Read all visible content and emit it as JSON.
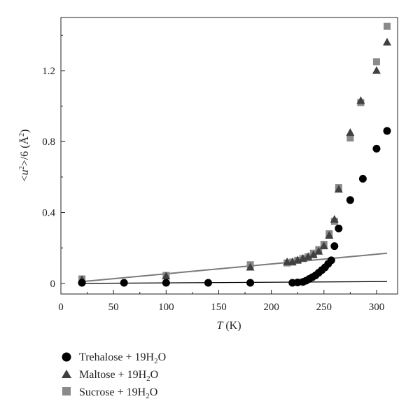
{
  "chart_data": {
    "type": "scatter",
    "title": "",
    "xlabel": {
      "italic": "T",
      "rest": " (K)"
    },
    "ylabel": {
      "pre": "<",
      "italic": "u",
      "sup": "2",
      "post": ">/6 (Å",
      "sup2": "2",
      "end": ")"
    },
    "xlim": [
      0,
      320
    ],
    "ylim": [
      -0.06,
      1.5
    ],
    "x_ticks": [
      0,
      50,
      100,
      150,
      200,
      250,
      300
    ],
    "x_tick_labels": [
      "0",
      "50",
      "100",
      "150",
      "200",
      "250",
      "300"
    ],
    "y_ticks": [
      0,
      0.4,
      0.8,
      1.2
    ],
    "y_tick_labels": [
      "0",
      "0.4",
      "0.8",
      "1.2"
    ],
    "grid": false,
    "legend_position": "below",
    "series": [
      {
        "name": "Trehalose + 19H₂O",
        "legend": {
          "pre": "Trehalose + 19H",
          "sub": "2",
          "post": "O"
        },
        "marker": "circle",
        "color": "#000000",
        "x": [
          20,
          60,
          100,
          140,
          180,
          220,
          225,
          230,
          233,
          236,
          239,
          242,
          245,
          248,
          251,
          254,
          257,
          260,
          264,
          275,
          287,
          300,
          310
        ],
        "y": [
          0.003,
          0.003,
          0.003,
          0.003,
          0.003,
          0.003,
          0.005,
          0.008,
          0.015,
          0.025,
          0.035,
          0.045,
          0.06,
          0.075,
          0.09,
          0.11,
          0.13,
          0.21,
          0.31,
          0.47,
          0.59,
          0.76,
          0.86
        ]
      },
      {
        "name": "Maltose + 19H₂O",
        "legend": {
          "pre": "Maltose + 19H",
          "sub": "2",
          "post": "O"
        },
        "marker": "triangle",
        "color": "#404040",
        "x": [
          20,
          100,
          180,
          215,
          220,
          225,
          230,
          235,
          240,
          245,
          250,
          255,
          260,
          264,
          275,
          285,
          300,
          310
        ],
        "y": [
          0.02,
          0.04,
          0.09,
          0.12,
          0.12,
          0.13,
          0.14,
          0.15,
          0.16,
          0.18,
          0.21,
          0.27,
          0.36,
          0.53,
          0.85,
          1.03,
          1.2,
          1.36
        ]
      },
      {
        "name": "Sucrose + 19H₂O",
        "legend": {
          "pre": "Sucrose + 19H",
          "sub": "2",
          "post": "O"
        },
        "marker": "square",
        "color": "#8a8a8a",
        "x": [
          20,
          100,
          180,
          215,
          220,
          225,
          230,
          235,
          240,
          245,
          250,
          255,
          260,
          264,
          275,
          285,
          300,
          310
        ],
        "y": [
          0.025,
          0.045,
          0.105,
          0.115,
          0.12,
          0.13,
          0.14,
          0.15,
          0.17,
          0.19,
          0.22,
          0.28,
          0.35,
          0.54,
          0.82,
          1.02,
          1.25,
          1.45
        ]
      }
    ],
    "fit_lines": [
      {
        "color": "#7a7a7a",
        "x": [
          20,
          310
        ],
        "y": [
          0.01,
          0.17
        ]
      },
      {
        "color": "#000000",
        "x": [
          20,
          310
        ],
        "y": [
          0.0,
          0.01
        ]
      }
    ]
  }
}
